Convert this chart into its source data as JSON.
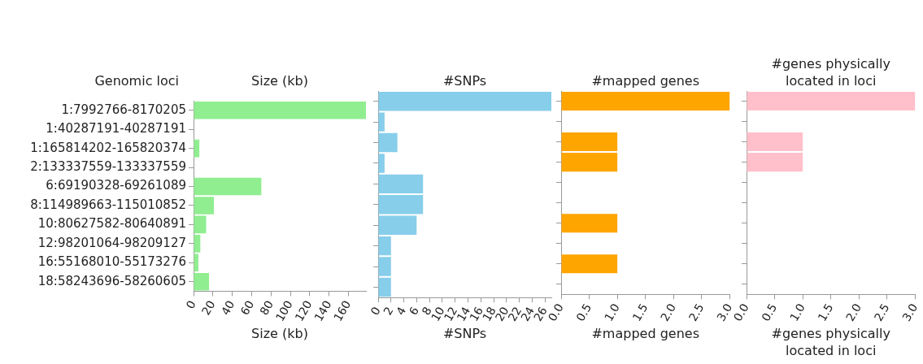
{
  "chart_data": [
    {
      "type": "bar",
      "orientation": "horizontal",
      "title": "Size (kb)",
      "xlabel": "Size (kb)",
      "ylabel": "Genomic loci",
      "categories": [
        "1:7992766-8170205",
        "1:40287191-40287191",
        "1:165814202-165820374",
        "2:133337559-133337559",
        "6:69190328-69261089",
        "8:114989663-115010852",
        "10:80627582-80640891",
        "12:98201064-98209127",
        "16:55168010-55173276",
        "18:58243696-58260605"
      ],
      "values": [
        178,
        0,
        6,
        0,
        70,
        21,
        13,
        7,
        5,
        16
      ],
      "color": "#90ee90",
      "xlim": [
        0,
        178
      ],
      "xticks": [
        0,
        20,
        40,
        60,
        80,
        100,
        120,
        140,
        160
      ],
      "grid": false
    },
    {
      "type": "bar",
      "orientation": "horizontal",
      "title": "#SNPs",
      "xlabel": "#SNPs",
      "categories": [
        null,
        null,
        null,
        null,
        null,
        null,
        null,
        null,
        null,
        null
      ],
      "values": [
        27,
        1,
        3,
        1,
        7,
        7,
        6,
        2,
        2,
        2
      ],
      "color": "#87ceeb",
      "xlim": [
        0,
        27
      ],
      "xticks": [
        0,
        2,
        4,
        6,
        8,
        10,
        12,
        14,
        16,
        18,
        20,
        22,
        24,
        26
      ],
      "grid": false,
      "tick_labels": "x"
    },
    {
      "type": "bar",
      "orientation": "horizontal",
      "title": "#mapped genes",
      "xlabel": "#mapped genes",
      "categories": [
        null,
        null,
        null,
        null,
        null,
        null,
        null,
        null,
        null,
        null
      ],
      "values": [
        3,
        0,
        1,
        1,
        0,
        0,
        1,
        0,
        1,
        0
      ],
      "color": "#ffa500",
      "xlim": [
        0,
        3
      ],
      "xticks": [
        {
          "value": 0,
          "label": "0.0"
        },
        {
          "value": 0.5,
          "label": "0.5"
        },
        {
          "value": 1,
          "label": "1.0"
        },
        {
          "value": 1.5,
          "label": "1.5"
        },
        {
          "value": 2,
          "label": "2.0"
        },
        {
          "value": 2.5,
          "label": "2.5"
        },
        {
          "value": 3,
          "label": "3.0"
        }
      ],
      "grid": false,
      "tick_labels": "x"
    },
    {
      "type": "bar",
      "orientation": "horizontal",
      "title": "#genes physically located in loci",
      "xlabel": "#genes physically located in loci",
      "categories": [
        null,
        null,
        null,
        null,
        null,
        null,
        null,
        null,
        null,
        null
      ],
      "values": [
        3,
        0,
        1,
        1,
        0,
        0,
        0,
        0,
        0,
        0
      ],
      "color": "#ffc0cb",
      "xlim": [
        0,
        3
      ],
      "xticks": [
        {
          "value": 0,
          "label": "0.0"
        },
        {
          "value": 0.5,
          "label": "0.5"
        },
        {
          "value": 1,
          "label": "1.0"
        },
        {
          "value": 1.5,
          "label": "1.5"
        },
        {
          "value": 2,
          "label": "2.0"
        },
        {
          "value": 2.5,
          "label": "2.5"
        },
        {
          "value": 3,
          "label": "3.0"
        }
      ],
      "grid": false,
      "tick_labels": "x"
    }
  ]
}
